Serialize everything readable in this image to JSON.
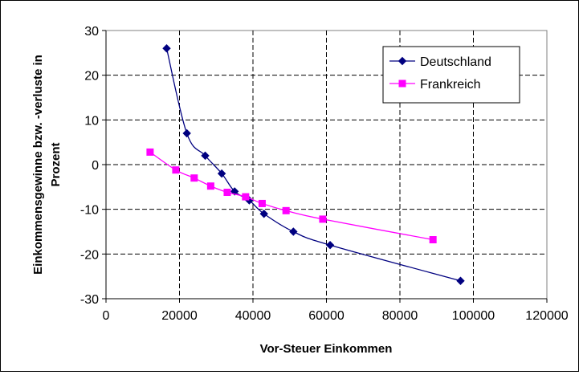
{
  "chart_data": {
    "type": "line",
    "title": "",
    "xlabel": "Vor-Steuer Einkommen",
    "ylabel_lines": [
      "Einkommensgewinne bzw. -verluste in",
      "Prozent"
    ],
    "xlim": [
      0,
      120000
    ],
    "ylim": [
      -30,
      30
    ],
    "x_ticks": [
      0,
      20000,
      40000,
      60000,
      80000,
      100000,
      120000
    ],
    "y_ticks": [
      30,
      20,
      10,
      0,
      -10,
      -20,
      -30
    ],
    "grid": true,
    "legend_position": "top-right",
    "series": [
      {
        "name": "Deutschland",
        "color": "#000080",
        "marker": "diamond",
        "x": [
          16500,
          22000,
          27000,
          31500,
          35000,
          39000,
          43000,
          51000,
          61000,
          96500
        ],
        "y": [
          26,
          7,
          2,
          -2,
          -6,
          -8,
          -11,
          -15,
          -18,
          -26
        ]
      },
      {
        "name": "Frankreich",
        "color": "#ff00ff",
        "marker": "square",
        "x": [
          12000,
          19000,
          24000,
          28500,
          33000,
          38000,
          42500,
          49000,
          59000,
          89000
        ],
        "y": [
          2.8,
          -1.2,
          -3.0,
          -4.8,
          -6.2,
          -7.2,
          -8.7,
          -10.3,
          -12.2,
          -16.8
        ]
      }
    ]
  }
}
